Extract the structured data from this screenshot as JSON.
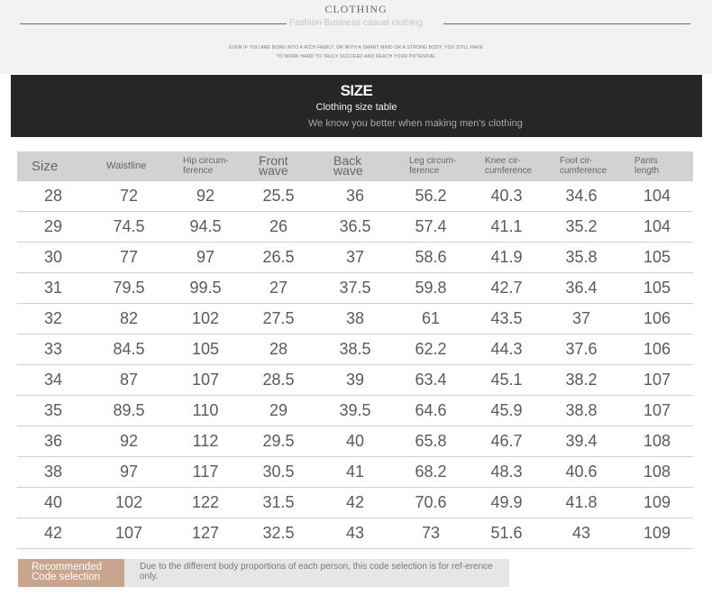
{
  "header": {
    "brand": "CLOTHING",
    "subtitle": "Fashion Business casual clothing",
    "motto_line1": "Even if you are born into a rich family, or with a smart mind or a strong body, you still have",
    "motto_line2": "to work hard to truly succeed and reach your potential"
  },
  "banner": {
    "title": "SIZE",
    "subtitle": "Clothing size table",
    "tagline": "We know you better when making men's clothing"
  },
  "table": {
    "headers": [
      {
        "line1": "Size",
        "line2": ""
      },
      {
        "line1": "Waistline",
        "line2": ""
      },
      {
        "line1": "Hip circum-",
        "line2": "ference"
      },
      {
        "line1": "Front",
        "line2": "wave"
      },
      {
        "line1": "Back",
        "line2": "wave"
      },
      {
        "line1": "Leg circum-",
        "line2": "ference"
      },
      {
        "line1": "Knee cir-",
        "line2": "cumference"
      },
      {
        "line1": "Foot cir-",
        "line2": "cumference"
      },
      {
        "line1": "Pants",
        "line2": "length"
      }
    ],
    "rows": [
      [
        "28",
        "72",
        "92",
        "25.5",
        "36",
        "56.2",
        "40.3",
        "34.6",
        "104"
      ],
      [
        "29",
        "74.5",
        "94.5",
        "26",
        "36.5",
        "57.4",
        "41.1",
        "35.2",
        "104"
      ],
      [
        "30",
        "77",
        "97",
        "26.5",
        "37",
        "58.6",
        "41.9",
        "35.8",
        "105"
      ],
      [
        "31",
        "79.5",
        "99.5",
        "27",
        "37.5",
        "59.8",
        "42.7",
        "36.4",
        "105"
      ],
      [
        "32",
        "82",
        "102",
        "27.5",
        "38",
        "61",
        "43.5",
        "37",
        "106"
      ],
      [
        "33",
        "84.5",
        "105",
        "28",
        "38.5",
        "62.2",
        "44.3",
        "37.6",
        "106"
      ],
      [
        "34",
        "87",
        "107",
        "28.5",
        "39",
        "63.4",
        "45.1",
        "38.2",
        "107"
      ],
      [
        "35",
        "89.5",
        "110",
        "29",
        "39.5",
        "64.6",
        "45.9",
        "38.8",
        "107"
      ],
      [
        "36",
        "92",
        "112",
        "29.5",
        "40",
        "65.8",
        "46.7",
        "39.4",
        "108"
      ],
      [
        "38",
        "97",
        "117",
        "30.5",
        "41",
        "68.2",
        "48.3",
        "40.6",
        "108"
      ],
      [
        "40",
        "102",
        "122",
        "31.5",
        "42",
        "70.6",
        "49.9",
        "41.8",
        "109"
      ],
      [
        "42",
        "107",
        "127",
        "32.5",
        "43",
        "73",
        "51.6",
        "43",
        "109"
      ]
    ]
  },
  "note": {
    "badge_line1": "Recommended",
    "badge_line2": "Code selection",
    "text": "Due to the different body proportions of each person, this code selection is for ref-erence only."
  },
  "colors": {
    "banner_bg": "#262626",
    "header_row_bg": "#d2d2d2",
    "badge_bg": "#c8a58c"
  }
}
